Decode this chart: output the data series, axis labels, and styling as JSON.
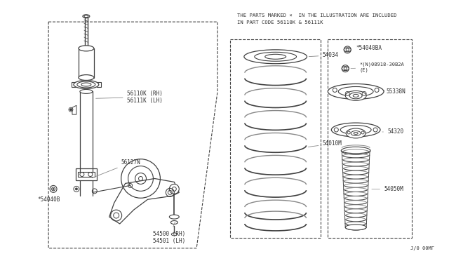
{
  "bg_color": "#ffffff",
  "line_color": "#404040",
  "text_color": "#303030",
  "header_line1": "THE PARTS MARKED ×  IN THE ILLUSTRATION ARE INCLUDED",
  "header_line2": "IN PART CODE 56110K & 56111K",
  "footer": "J/0 00MΓ",
  "label_56110K": "56110K (RH)\n56111K (LH)",
  "label_56127N": "56127N",
  "label_54040B": "*54040B",
  "label_54500": "54500 (RH)\n54501 (LH)",
  "label_54034": "54034",
  "label_54010M": "54010M",
  "label_54040BA": "*54040BA",
  "label_08918": "*(N)08918-30B2A\n(E)",
  "label_55338N": "55338N",
  "label_54320": "54320",
  "label_54050M": "54050M"
}
